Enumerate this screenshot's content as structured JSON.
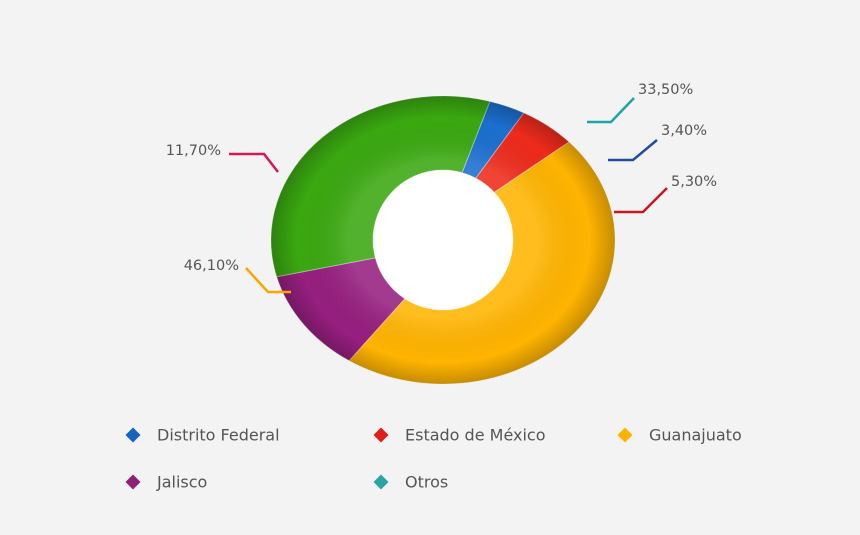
{
  "chart_data": {
    "type": "pie",
    "categories": [
      "Distrito Federal",
      "Estado de México",
      "Guanajuato",
      "Jalisco",
      "Otros"
    ],
    "values": [
      3.4,
      5.3,
      46.1,
      11.7,
      33.5
    ],
    "value_labels": [
      "3,40%",
      "5,30%",
      "46,10%",
      "11,70%",
      "33,50%"
    ],
    "colors": [
      "#1565c0",
      "#e02018",
      "#ffb300",
      "#8e1f7a",
      "#2aa3a6"
    ],
    "slice_colors": [
      "#1a6fd0",
      "#ee2b1c",
      "#ffb400",
      "#961f7f",
      "#3aa810"
    ],
    "leader_colors": [
      "#1f4ea0",
      "#c4181c",
      "#f7a800",
      "#d4185a",
      "#1aa6a3"
    ],
    "legend_position": "bottom",
    "donut": true
  }
}
